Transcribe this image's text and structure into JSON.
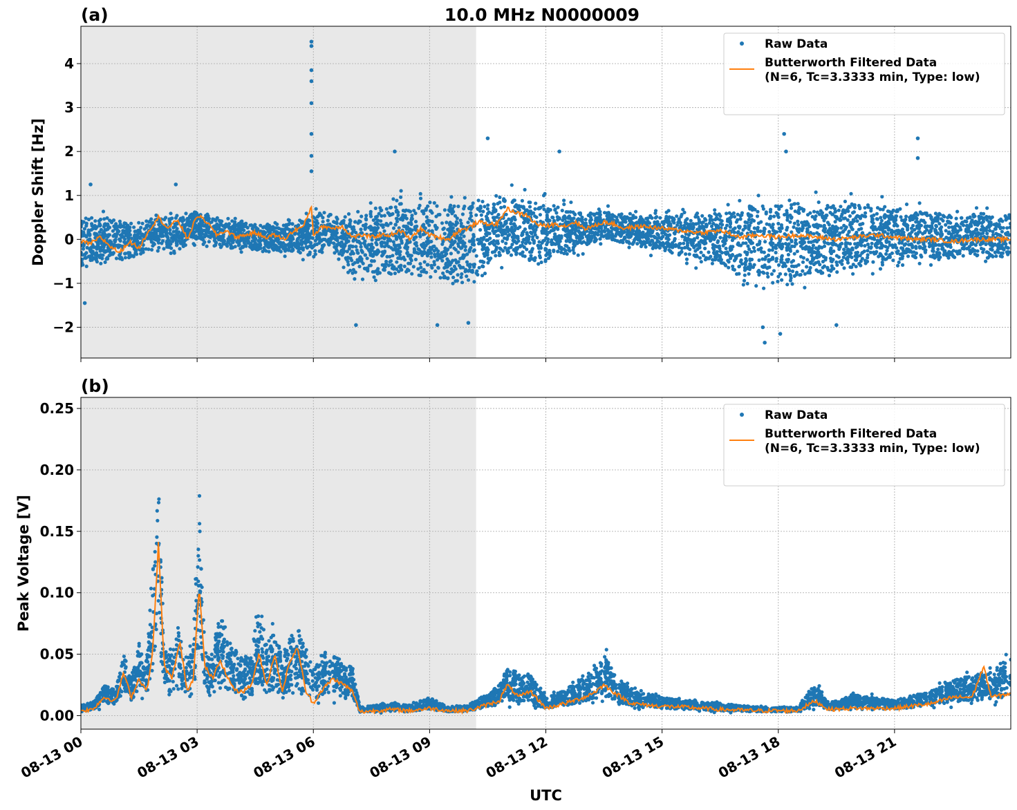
{
  "figure_title": "10.0 MHz N0000009",
  "colors": {
    "raw": "#1f77b4",
    "filtered": "#ff7f0e",
    "night_shade": "#e8e8e8",
    "grid": "#b0b0b0"
  },
  "chart_data": [
    {
      "panel_label": "(a)",
      "type": "scatter",
      "ylabel": "Doppler Shift [Hz]",
      "xlabel": "",
      "x_unit": "hours UTC on 08-13",
      "xlim": [
        0,
        24
      ],
      "ylim": [
        -2.7,
        4.85
      ],
      "yticks": [
        -2,
        -1,
        0,
        1,
        2,
        3,
        4
      ],
      "ytick_labels": [
        "−2",
        "−1",
        "0",
        "1",
        "2",
        "3",
        "4"
      ],
      "xticks": [
        0,
        3,
        6,
        9,
        12,
        15,
        18,
        21
      ],
      "xtick_labels": [],
      "grid": true,
      "shaded_interval": [
        0,
        10.2
      ],
      "legend_position": "top-right",
      "legend": [
        "Raw Data",
        "Butterworth Filtered Data\n(N=6, Tc=3.3333 min, Type: low)"
      ],
      "series": [
        {
          "name": "Raw Data",
          "style": "points",
          "envelope_x": [
            0,
            0.5,
            1,
            1.5,
            2,
            2.5,
            3,
            3.5,
            4,
            4.5,
            5,
            5.5,
            6,
            6.5,
            7,
            7.5,
            8,
            8.5,
            9,
            9.5,
            10,
            10.5,
            11,
            11.5,
            12,
            12.5,
            13,
            13.5,
            14,
            14.5,
            15,
            15.5,
            16,
            16.5,
            17,
            17.5,
            18,
            18.5,
            19,
            19.5,
            20,
            20.5,
            21,
            21.5,
            22,
            22.5,
            23,
            23.5,
            24
          ],
          "envelope_upper": [
            0.9,
            0.8,
            0.75,
            0.6,
            0.7,
            0.75,
            0.85,
            0.65,
            0.6,
            0.55,
            0.55,
            0.6,
            0.9,
            0.7,
            0.95,
            1.2,
            1.25,
            1.3,
            1.3,
            1.35,
            1.4,
            1.3,
            1.4,
            1.35,
            1.2,
            1.0,
            0.8,
            0.9,
            0.8,
            0.75,
            0.8,
            0.9,
            1.0,
            1.1,
            1.2,
            1.3,
            1.35,
            1.4,
            1.4,
            1.35,
            1.3,
            1.2,
            1.1,
            1.0,
            0.95,
            0.9,
            0.9,
            0.85,
            0.85
          ],
          "envelope_lower": [
            -1.0,
            -0.8,
            -0.8,
            -0.6,
            -0.4,
            -0.5,
            -0.2,
            -0.4,
            -0.4,
            -0.5,
            -0.5,
            -0.5,
            -0.7,
            -0.5,
            -1.2,
            -1.3,
            -1.3,
            -1.3,
            -1.4,
            -1.5,
            -1.7,
            -1.0,
            -0.8,
            -0.9,
            -1.0,
            -0.6,
            -0.4,
            -0.2,
            -0.3,
            -0.4,
            -0.5,
            -0.7,
            -0.8,
            -1.0,
            -1.3,
            -1.5,
            -1.6,
            -1.4,
            -1.3,
            -1.2,
            -1.1,
            -0.9,
            -0.9,
            -0.8,
            -0.8,
            -0.75,
            -0.7,
            -0.75,
            -0.7
          ],
          "outliers": [
            [
              0.25,
              1.25
            ],
            [
              2.45,
              1.25
            ],
            [
              5.95,
              4.5
            ],
            [
              5.95,
              4.4
            ],
            [
              5.95,
              3.85
            ],
            [
              5.95,
              3.6
            ],
            [
              5.95,
              3.1
            ],
            [
              5.95,
              2.4
            ],
            [
              5.95,
              1.9
            ],
            [
              5.95,
              1.55
            ],
            [
              8.1,
              2.0
            ],
            [
              10.5,
              2.3
            ],
            [
              12.35,
              2.0
            ],
            [
              18.15,
              2.4
            ],
            [
              18.2,
              2.0
            ],
            [
              21.6,
              2.3
            ],
            [
              21.6,
              1.85
            ],
            [
              0.1,
              -1.45
            ],
            [
              7.1,
              -1.95
            ],
            [
              9.2,
              -1.95
            ],
            [
              10.0,
              -1.9
            ],
            [
              17.65,
              -2.35
            ],
            [
              17.6,
              -2.0
            ],
            [
              18.05,
              -2.15
            ],
            [
              19.5,
              -1.95
            ]
          ]
        },
        {
          "name": "Butterworth Filtered Data\n(N=6, Tc=3.3333 min, Type: low)",
          "style": "line",
          "x": [
            0,
            0.25,
            0.5,
            0.75,
            1,
            1.25,
            1.5,
            1.75,
            2,
            2.25,
            2.5,
            2.75,
            3,
            3.25,
            3.5,
            3.75,
            4,
            4.25,
            4.5,
            4.75,
            5,
            5.25,
            5.5,
            5.75,
            5.95,
            6,
            6.25,
            6.5,
            6.75,
            7,
            7.25,
            7.5,
            7.75,
            8,
            8.25,
            8.5,
            8.75,
            9,
            9.25,
            9.5,
            9.75,
            10,
            10.25,
            10.5,
            10.75,
            11,
            11.25,
            11.5,
            11.75,
            12,
            12.25,
            12.5,
            12.75,
            13,
            13.25,
            13.5,
            13.75,
            14,
            14.5,
            15,
            15.5,
            16,
            16.5,
            17,
            17.5,
            18,
            18.5,
            19,
            19.5,
            20,
            20.5,
            21,
            21.5,
            22,
            22.5,
            23,
            23.5,
            24
          ],
          "y": [
            -0.05,
            -0.1,
            0.05,
            -0.15,
            -0.3,
            -0.05,
            -0.2,
            0.2,
            0.5,
            0.25,
            0.45,
            0.0,
            0.55,
            0.4,
            0.1,
            0.2,
            0.05,
            0.1,
            0.15,
            0.05,
            0.1,
            0.0,
            0.2,
            0.3,
            0.75,
            0.1,
            0.3,
            0.25,
            0.3,
            0.05,
            0.1,
            0.05,
            0.1,
            0.1,
            0.2,
            0.0,
            0.25,
            0.1,
            0.05,
            0.0,
            0.2,
            0.25,
            0.4,
            0.35,
            0.35,
            0.7,
            0.6,
            0.55,
            0.35,
            0.3,
            0.35,
            0.3,
            0.4,
            0.25,
            0.3,
            0.4,
            0.35,
            0.25,
            0.3,
            0.25,
            0.2,
            0.15,
            0.2,
            0.05,
            0.1,
            0.05,
            0.1,
            0.05,
            0.0,
            0.05,
            0.1,
            0.05,
            0.0,
            0.0,
            -0.05,
            0.0,
            0.0,
            0.0
          ]
        }
      ]
    },
    {
      "panel_label": "(b)",
      "type": "scatter",
      "ylabel": "Peak Voltage [V]",
      "xlabel": "UTC",
      "x_unit": "hours UTC on 08-13",
      "xlim": [
        0,
        24
      ],
      "ylim": [
        -0.011,
        0.259
      ],
      "yticks": [
        0.0,
        0.05,
        0.1,
        0.15,
        0.2,
        0.25
      ],
      "ytick_labels": [
        "0.00",
        "0.05",
        "0.10",
        "0.15",
        "0.20",
        "0.25"
      ],
      "xticks": [
        0,
        3,
        6,
        9,
        12,
        15,
        18,
        21
      ],
      "xtick_labels": [
        "08-13 00",
        "08-13 03",
        "08-13 06",
        "08-13 09",
        "08-13 12",
        "08-13 15",
        "08-13 18",
        "08-13 21"
      ],
      "grid": true,
      "shaded_interval": [
        0,
        10.2
      ],
      "legend_position": "top-right",
      "legend": [
        "Raw Data",
        "Butterworth Filtered Data\n(N=6, Tc=3.3333 min, Type: low)"
      ],
      "series": [
        {
          "name": "Raw Data",
          "style": "points",
          "envelope_x": [
            0,
            0.3,
            0.6,
            0.9,
            1.1,
            1.3,
            1.5,
            1.7,
            1.9,
            2.0,
            2.1,
            2.3,
            2.5,
            2.7,
            2.9,
            3.05,
            3.2,
            3.4,
            3.6,
            3.8,
            4.0,
            4.2,
            4.4,
            4.6,
            4.8,
            5.0,
            5.2,
            5.4,
            5.6,
            5.8,
            6.0,
            6.2,
            6.5,
            6.8,
            7.0,
            7.2,
            7.6,
            8.0,
            8.5,
            9.0,
            9.5,
            10.0,
            10.4,
            10.8,
            11.0,
            11.3,
            11.6,
            12.0,
            12.5,
            13.0,
            13.3,
            13.5,
            13.8,
            14.2,
            14.8,
            15.5,
            16.5,
            17.5,
            18.5,
            18.95,
            19.3,
            20.0,
            21.0,
            22.0,
            22.5,
            23.0,
            23.5,
            24
          ],
          "envelope_upper": [
            0.01,
            0.012,
            0.03,
            0.025,
            0.06,
            0.035,
            0.07,
            0.06,
            0.17,
            0.245,
            0.12,
            0.06,
            0.09,
            0.06,
            0.075,
            0.215,
            0.07,
            0.06,
            0.11,
            0.08,
            0.065,
            0.055,
            0.06,
            0.11,
            0.07,
            0.09,
            0.055,
            0.08,
            0.09,
            0.07,
            0.05,
            0.06,
            0.065,
            0.05,
            0.05,
            0.008,
            0.01,
            0.012,
            0.01,
            0.018,
            0.008,
            0.01,
            0.02,
            0.03,
            0.048,
            0.04,
            0.04,
            0.018,
            0.025,
            0.04,
            0.05,
            0.06,
            0.04,
            0.025,
            0.02,
            0.015,
            0.012,
            0.008,
            0.008,
            0.032,
            0.012,
            0.02,
            0.015,
            0.025,
            0.035,
            0.04,
            0.045,
            0.06
          ],
          "envelope_lower": [
            0.002,
            0.003,
            0.005,
            0.005,
            0.008,
            0.006,
            0.008,
            0.01,
            0.01,
            0.012,
            0.008,
            0.006,
            0.008,
            0.006,
            0.008,
            0.008,
            0.007,
            0.006,
            0.006,
            0.006,
            0.005,
            0.005,
            0.005,
            0.006,
            0.005,
            0.005,
            0.005,
            0.005,
            0.005,
            0.005,
            0.005,
            0.004,
            0.005,
            0.006,
            0.004,
            0.002,
            0.002,
            0.002,
            0.002,
            0.002,
            0.002,
            0.002,
            0.003,
            0.004,
            0.004,
            0.004,
            0.004,
            0.003,
            0.004,
            0.004,
            0.005,
            0.005,
            0.004,
            0.004,
            0.003,
            0.003,
            0.002,
            0.002,
            0.002,
            0.003,
            0.003,
            0.003,
            0.003,
            0.004,
            0.005,
            0.005,
            0.006,
            0.006
          ]
        },
        {
          "name": "Butterworth Filtered Data\n(N=6, Tc=3.3333 min, Type: low)",
          "style": "line",
          "x": [
            0,
            0.3,
            0.6,
            0.9,
            1.1,
            1.3,
            1.5,
            1.7,
            1.85,
            2.0,
            2.15,
            2.35,
            2.55,
            2.75,
            2.9,
            3.05,
            3.2,
            3.4,
            3.6,
            3.8,
            4.0,
            4.2,
            4.4,
            4.6,
            4.8,
            5.0,
            5.2,
            5.4,
            5.6,
            5.8,
            6.0,
            6.2,
            6.5,
            6.8,
            7.0,
            7.2,
            7.6,
            8.0,
            8.5,
            9.0,
            9.5,
            10.0,
            10.4,
            10.8,
            11.0,
            11.3,
            11.6,
            12.0,
            12.5,
            13.0,
            13.3,
            13.5,
            13.8,
            14.2,
            14.8,
            15.5,
            16.5,
            17.5,
            18.5,
            18.95,
            19.3,
            20.0,
            21.0,
            22.0,
            22.5,
            23.0,
            23.3,
            23.5,
            24
          ],
          "y": [
            0.004,
            0.005,
            0.015,
            0.012,
            0.035,
            0.015,
            0.03,
            0.02,
            0.05,
            0.14,
            0.04,
            0.03,
            0.06,
            0.02,
            0.03,
            0.105,
            0.04,
            0.03,
            0.045,
            0.03,
            0.02,
            0.02,
            0.025,
            0.05,
            0.025,
            0.05,
            0.02,
            0.045,
            0.055,
            0.02,
            0.01,
            0.02,
            0.03,
            0.025,
            0.02,
            0.003,
            0.004,
            0.005,
            0.004,
            0.006,
            0.004,
            0.004,
            0.008,
            0.012,
            0.025,
            0.015,
            0.02,
            0.006,
            0.01,
            0.015,
            0.02,
            0.025,
            0.018,
            0.01,
            0.008,
            0.007,
            0.005,
            0.004,
            0.004,
            0.012,
            0.005,
            0.006,
            0.006,
            0.01,
            0.015,
            0.015,
            0.04,
            0.015,
            0.018
          ]
        }
      ]
    }
  ]
}
